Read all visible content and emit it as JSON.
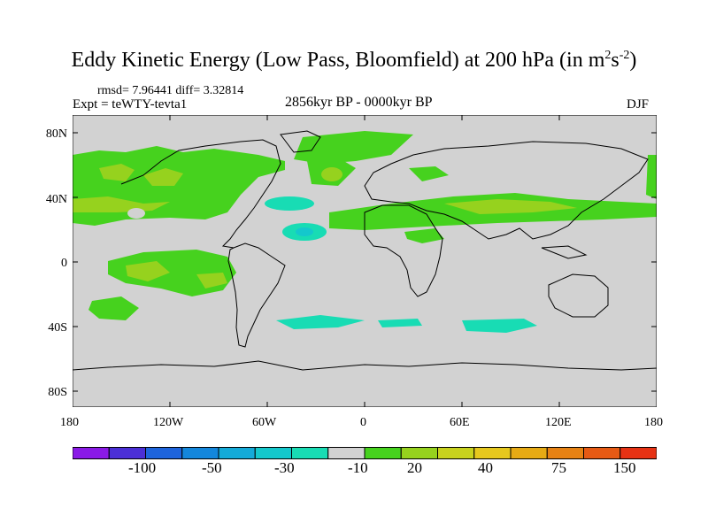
{
  "title": {
    "main": "Eddy Kinetic Energy (Low Pass, Bloomfield) at 200 hPa (in m",
    "sup1": "2",
    "mid": "s",
    "sup2": "-2",
    "end": ")"
  },
  "stats": "rmsd= 7.96441  diff= 3.32814",
  "expt": "Expt = teWTY-tevta1",
  "period": "2856kyr BP - 0000kyr BP",
  "season": "DJF",
  "map": {
    "lat_ticks": [
      "80N",
      "40N",
      "0",
      "40S",
      "80S"
    ],
    "lon_ticks": [
      "180",
      "120W",
      "60W",
      "0",
      "60E",
      "120E",
      "180"
    ]
  },
  "colorbar": {
    "colors": [
      "#8a1ae6",
      "#4b2fd6",
      "#1e64dc",
      "#1487dc",
      "#14aad8",
      "#14c8cc",
      "#18dcb4",
      "#d2d2d2",
      "#46d21e",
      "#96d21e",
      "#c8d21e",
      "#e6c81e",
      "#e6aa14",
      "#e68214",
      "#e65a14",
      "#e63214"
    ],
    "labels": [
      "-100",
      "-50",
      "-30",
      "-10",
      "20",
      "40",
      "75",
      "150"
    ]
  },
  "fill_colors": {
    "green": "#46d21e",
    "yellowgreen": "#96d21e",
    "cyan": "#18dcb4",
    "teal": "#14c8cc",
    "land_bg": "#d2d2d2"
  }
}
